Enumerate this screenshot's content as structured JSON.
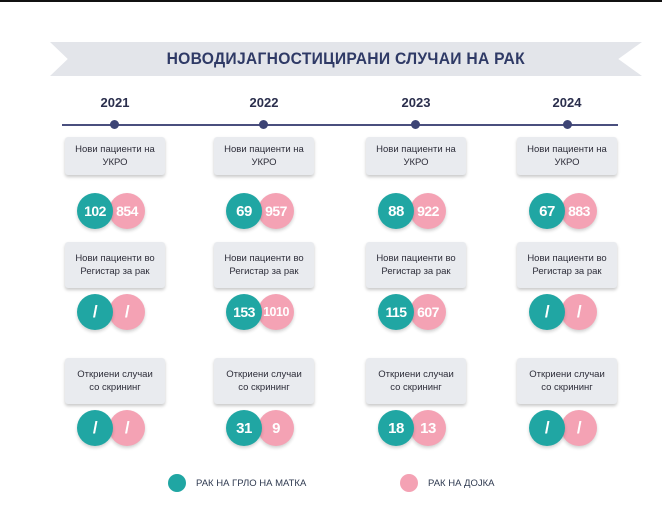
{
  "title": "НОВОДИЈАГНОСТИЦИРАНИ СЛУЧАИ НА РАК",
  "colors": {
    "teal": "#20a6a3",
    "pink": "#f4a2b4",
    "banner": "#e3e5ea",
    "timeline": "#4a4f7e"
  },
  "row_labels": {
    "r1": "Нови пациенти на УКРО",
    "r2": "Нови пациенти во Регистар за рак",
    "r3": "Откриени случаи со скрининг"
  },
  "columns": [
    {
      "year": "2021",
      "ukro": [
        "102",
        "854"
      ],
      "registar": [
        "/",
        "/"
      ],
      "skrining": [
        "/",
        "/"
      ]
    },
    {
      "year": "2022",
      "ukro": [
        "69",
        "957"
      ],
      "registar": [
        "153",
        "1010"
      ],
      "skrining": [
        "31",
        "9"
      ]
    },
    {
      "year": "2023",
      "ukro": [
        "88",
        "922"
      ],
      "registar": [
        "115",
        "607"
      ],
      "skrining": [
        "18",
        "13"
      ]
    },
    {
      "year": "2024",
      "ukro": [
        "67",
        "883"
      ],
      "registar": [
        "/",
        "/"
      ],
      "skrining": [
        "/",
        "/"
      ]
    }
  ],
  "legend": {
    "cervix": "РАК НА ГРЛО НА МАТКА",
    "breast": "РАК НА ДОЈКА"
  }
}
